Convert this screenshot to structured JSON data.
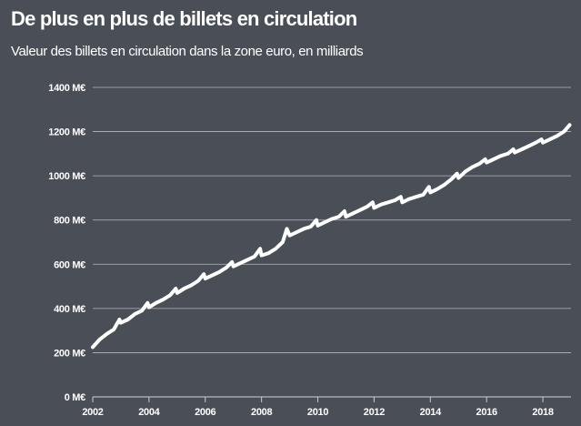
{
  "title": "De plus en plus de billets en circulation",
  "subtitle": "Valeur des billets en circulation dans la zone euro, en milliards",
  "colors": {
    "background": "#4a4e56",
    "line": "#ffffff",
    "grid": "#c9ccd1",
    "text": "#ffffff"
  },
  "chart_data": {
    "type": "line",
    "title": "De plus en plus de billets en circulation",
    "subtitle": "Valeur des billets en circulation dans la zone euro, en milliards",
    "xlabel": "",
    "ylabel": "",
    "grid": true,
    "legend": "none",
    "xlim": [
      2002,
      2019
    ],
    "ylim": [
      0,
      1400
    ],
    "x_ticks": [
      2002,
      2004,
      2006,
      2008,
      2010,
      2012,
      2014,
      2016,
      2018
    ],
    "x_tick_labels": [
      "2002",
      "2004",
      "2006",
      "2008",
      "2010",
      "2012",
      "2014",
      "2016",
      "2018"
    ],
    "y_ticks": [
      0,
      200,
      400,
      600,
      800,
      1000,
      1200,
      1400
    ],
    "y_tick_labels": [
      "0 M€",
      "200 M€",
      "400 M€",
      "600 M€",
      "800 M€",
      "1000 M€",
      "1200 M€",
      "1400 M€"
    ],
    "series": [
      {
        "x": [
          2002.0,
          2002.25,
          2002.5,
          2002.75,
          2002.95,
          2003.0,
          2003.25,
          2003.5,
          2003.75,
          2003.95,
          2004.0,
          2004.25,
          2004.5,
          2004.75,
          2004.95,
          2005.0,
          2005.25,
          2005.5,
          2005.75,
          2005.95,
          2006.0,
          2006.25,
          2006.5,
          2006.75,
          2006.95,
          2007.0,
          2007.25,
          2007.5,
          2007.75,
          2007.95,
          2008.0,
          2008.25,
          2008.5,
          2008.75,
          2008.9,
          2009.0,
          2009.25,
          2009.5,
          2009.75,
          2009.95,
          2010.0,
          2010.25,
          2010.5,
          2010.75,
          2010.95,
          2011.0,
          2011.25,
          2011.5,
          2011.75,
          2011.95,
          2012.0,
          2012.25,
          2012.5,
          2012.75,
          2012.95,
          2013.0,
          2013.25,
          2013.5,
          2013.75,
          2013.95,
          2014.0,
          2014.25,
          2014.5,
          2014.75,
          2014.95,
          2015.0,
          2015.25,
          2015.5,
          2015.75,
          2015.95,
          2016.0,
          2016.25,
          2016.5,
          2016.75,
          2016.95,
          2017.0,
          2017.25,
          2017.5,
          2017.75,
          2017.95,
          2018.0,
          2018.25,
          2018.5,
          2018.75,
          2018.95
        ],
        "values": [
          225,
          260,
          285,
          305,
          350,
          335,
          350,
          375,
          390,
          425,
          405,
          425,
          440,
          460,
          490,
          470,
          490,
          505,
          525,
          555,
          535,
          550,
          565,
          585,
          610,
          590,
          605,
          620,
          635,
          670,
          640,
          650,
          670,
          700,
          760,
          730,
          745,
          760,
          770,
          800,
          775,
          790,
          805,
          815,
          840,
          815,
          830,
          845,
          860,
          880,
          855,
          870,
          880,
          890,
          905,
          880,
          895,
          905,
          915,
          950,
          925,
          940,
          960,
          985,
          1010,
          990,
          1020,
          1040,
          1055,
          1075,
          1060,
          1075,
          1090,
          1100,
          1120,
          1105,
          1120,
          1135,
          1150,
          1165,
          1150,
          1165,
          1180,
          1200,
          1230
        ]
      }
    ]
  }
}
